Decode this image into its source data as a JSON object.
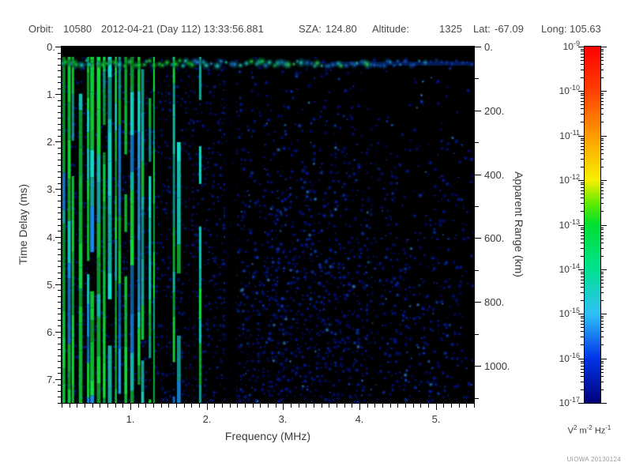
{
  "header": {
    "orbit_label": "Orbit:",
    "orbit_value": "10580",
    "datetime": "2012-04-21 (Day 112) 13:33:56.881",
    "sza_label": "SZA:",
    "sza_value": "124.80",
    "altitude_label": "Altitude:",
    "altitude_value": "1325",
    "lat_label": "Lat:",
    "lat_value": "-67.09",
    "long_label": "Long:",
    "long_value": "105.63"
  },
  "credit": "UIOWA 20130124",
  "chart_data": {
    "type": "heatmap",
    "subtype": "radar sounder ionogram spectrogram",
    "xlabel": "Frequency (MHz)",
    "ylabel_left": "Time Delay (ms)",
    "ylabel_right": "Apparent Range (km)",
    "x_range": [
      0.1,
      5.5
    ],
    "x_major_ticks": [
      1,
      2,
      3,
      4,
      5
    ],
    "x_tick_labels": [
      "1.",
      "2.",
      "3.",
      "4.",
      "5."
    ],
    "x_minor_step": 0.1,
    "y_range": [
      0,
      7.5
    ],
    "y_major_ticks": [
      0,
      1,
      2,
      3,
      4,
      5,
      6,
      7
    ],
    "y_tick_labels": [
      "0.",
      "1.",
      "2.",
      "3.",
      "4.",
      "5.",
      "6.",
      "7."
    ],
    "y_minor_step": 0.125,
    "y2_range": [
      0,
      1116
    ],
    "y2_major_ticks": [
      0,
      200,
      400,
      600,
      800,
      1000
    ],
    "y2_tick_labels": [
      "0.",
      "200.",
      "400.",
      "600.",
      "800.",
      "1000."
    ],
    "y2_minor_step": 100,
    "colorbar": {
      "scale": "log",
      "base": "10",
      "exponents": [
        "-9",
        "-10",
        "-11",
        "-12",
        "-13",
        "-14",
        "-15",
        "-16",
        "-17"
      ],
      "unit_parts": [
        [
          "V",
          "2"
        ],
        [
          "m",
          "-2"
        ],
        [
          "Hz",
          "-1"
        ]
      ],
      "gradient_top_to_bottom": [
        "#ff0000",
        "#ff4000",
        "#ff9c00",
        "#f8f000",
        "#00e030",
        "#00e290",
        "#30c0f8",
        "#0034e8",
        "#000078"
      ]
    },
    "palette": {
      "background": "#000000",
      "stripe_green": "#12e23c",
      "stripe_cyan": "#18dcc8",
      "stripe_skyblue": "#2fb0ff",
      "band_blue": "#1064d8",
      "noise_navy": "#0016b4",
      "noise_blue": "#0028e8",
      "noise_bright": "#38a0ff"
    },
    "features": {
      "blackout_top": {
        "time_delay_ms": [
          0,
          0.22
        ],
        "note": "black band, no echo before first return"
      },
      "surface_echo_band": {
        "time_delay_ms": [
          0.22,
          0.55
        ],
        "freq_mhz": [
          0.1,
          5.5
        ],
        "note": "bright horizontal band; green-cyan at low frequency fading to faint blue blobs at high frequency"
      },
      "ionospheric_stripes": {
        "freq_mhz": [
          0.1,
          2.1
        ],
        "time_delay_ms": [
          0.22,
          7.5
        ],
        "note": "dense vertical green/cyan interference stripes over blue noise, broken/dashed toward 2 MHz"
      },
      "quiet_gap": {
        "freq_mhz": [
          2.3,
          2.45
        ],
        "note": "dark vertical gap with almost no signal"
      },
      "diffuse_noise": {
        "freq_mhz": [
          2.0,
          5.5
        ],
        "note": "dark-blue speckle noise, density increases with time delay, sparser above 4.2 MHz"
      },
      "intensity_range_v2_m2_hz": [
        "1e-17",
        "1e-9"
      ]
    }
  }
}
